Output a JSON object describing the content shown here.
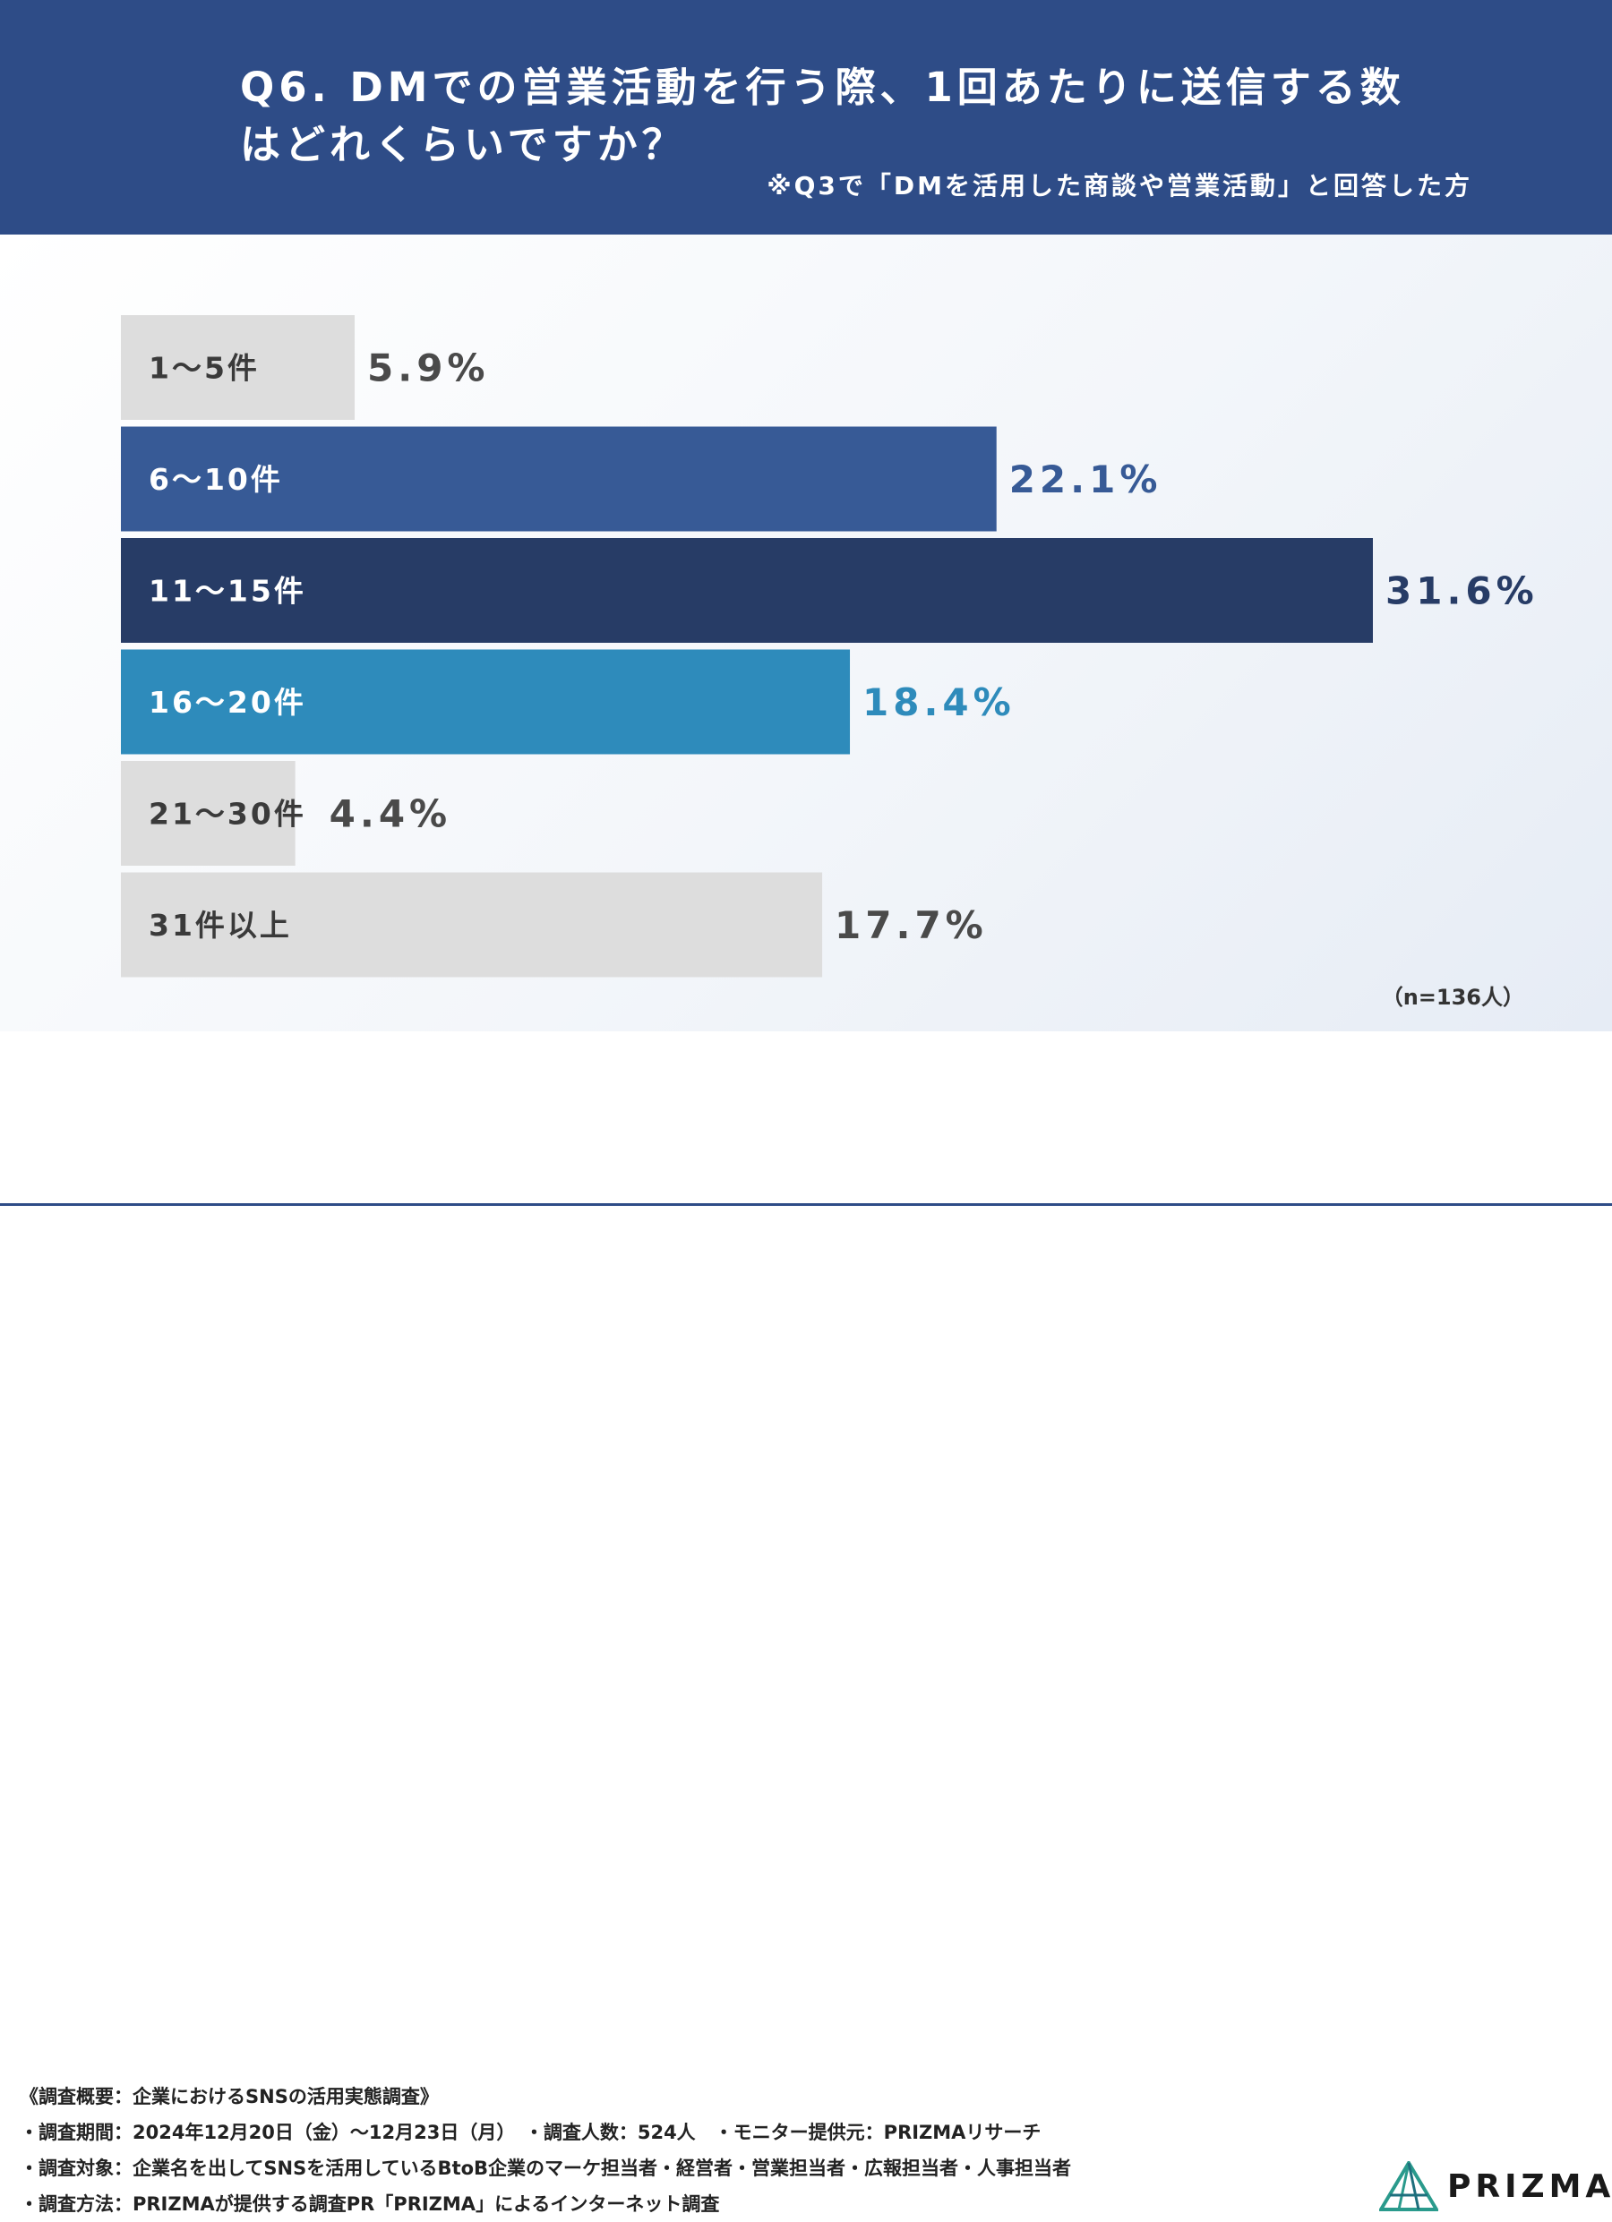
{
  "header": {
    "title_line1": "Q6. DMでの営業活動を行う際、1回あたりに送信する数",
    "title_line2": "はどれくらいですか？",
    "note": "※Q3で「DMを活用した商談や営業活動」と回答した方",
    "background": "#2e4c87"
  },
  "chart_data": {
    "type": "bar",
    "orientation": "horizontal",
    "title": "Q6. DMでの営業活動を行う際、1回あたりに送信する数はどれくらいですか？",
    "categories": [
      "1〜5件",
      "6〜10件",
      "11〜15件",
      "16〜20件",
      "21〜30件",
      "31件以上"
    ],
    "values": [
      5.9,
      22.1,
      31.6,
      18.4,
      4.4,
      17.7
    ],
    "value_labels": [
      "5.9%",
      "22.1%",
      "31.6%",
      "18.4%",
      "4.4%",
      "17.7%"
    ],
    "unit": "%",
    "bar_colors": [
      "#dddddd",
      "#375a96",
      "#273c66",
      "#2e8bbb",
      "#dddddd",
      "#dddddd"
    ],
    "category_label_colors": [
      "#3a3a3a",
      "#ffffff",
      "#ffffff",
      "#ffffff",
      "#3a3a3a",
      "#3a3a3a"
    ],
    "value_label_colors": [
      "#4a4a4a",
      "#375a96",
      "#273c66",
      "#2e8bbb",
      "#4a4a4a",
      "#4a4a4a"
    ],
    "xlim": [
      0,
      31.6
    ],
    "legend": "none",
    "grid": false
  },
  "sample_size": "（n=136人）",
  "footer": {
    "lines": [
      "《調査概要：企業におけるSNSの活用実態調査》",
      "・調査期間：2024年12月20日（金）〜12月23日（月）　・調査人数：524人　・モニター提供元：PRIZMAリサーチ",
      "・調査対象：企業名を出してSNSを活用しているBtoB企業のマーケ担当者・経営者・営業担当者・広報担当者・人事担当者",
      "・調査方法：PRIZMAが提供する調査PR「PRIZMA」によるインターネット調査"
    ]
  },
  "logo": {
    "text": "PRIZMA",
    "icon": "prism-logo-icon",
    "color": "#2a9a8c"
  }
}
